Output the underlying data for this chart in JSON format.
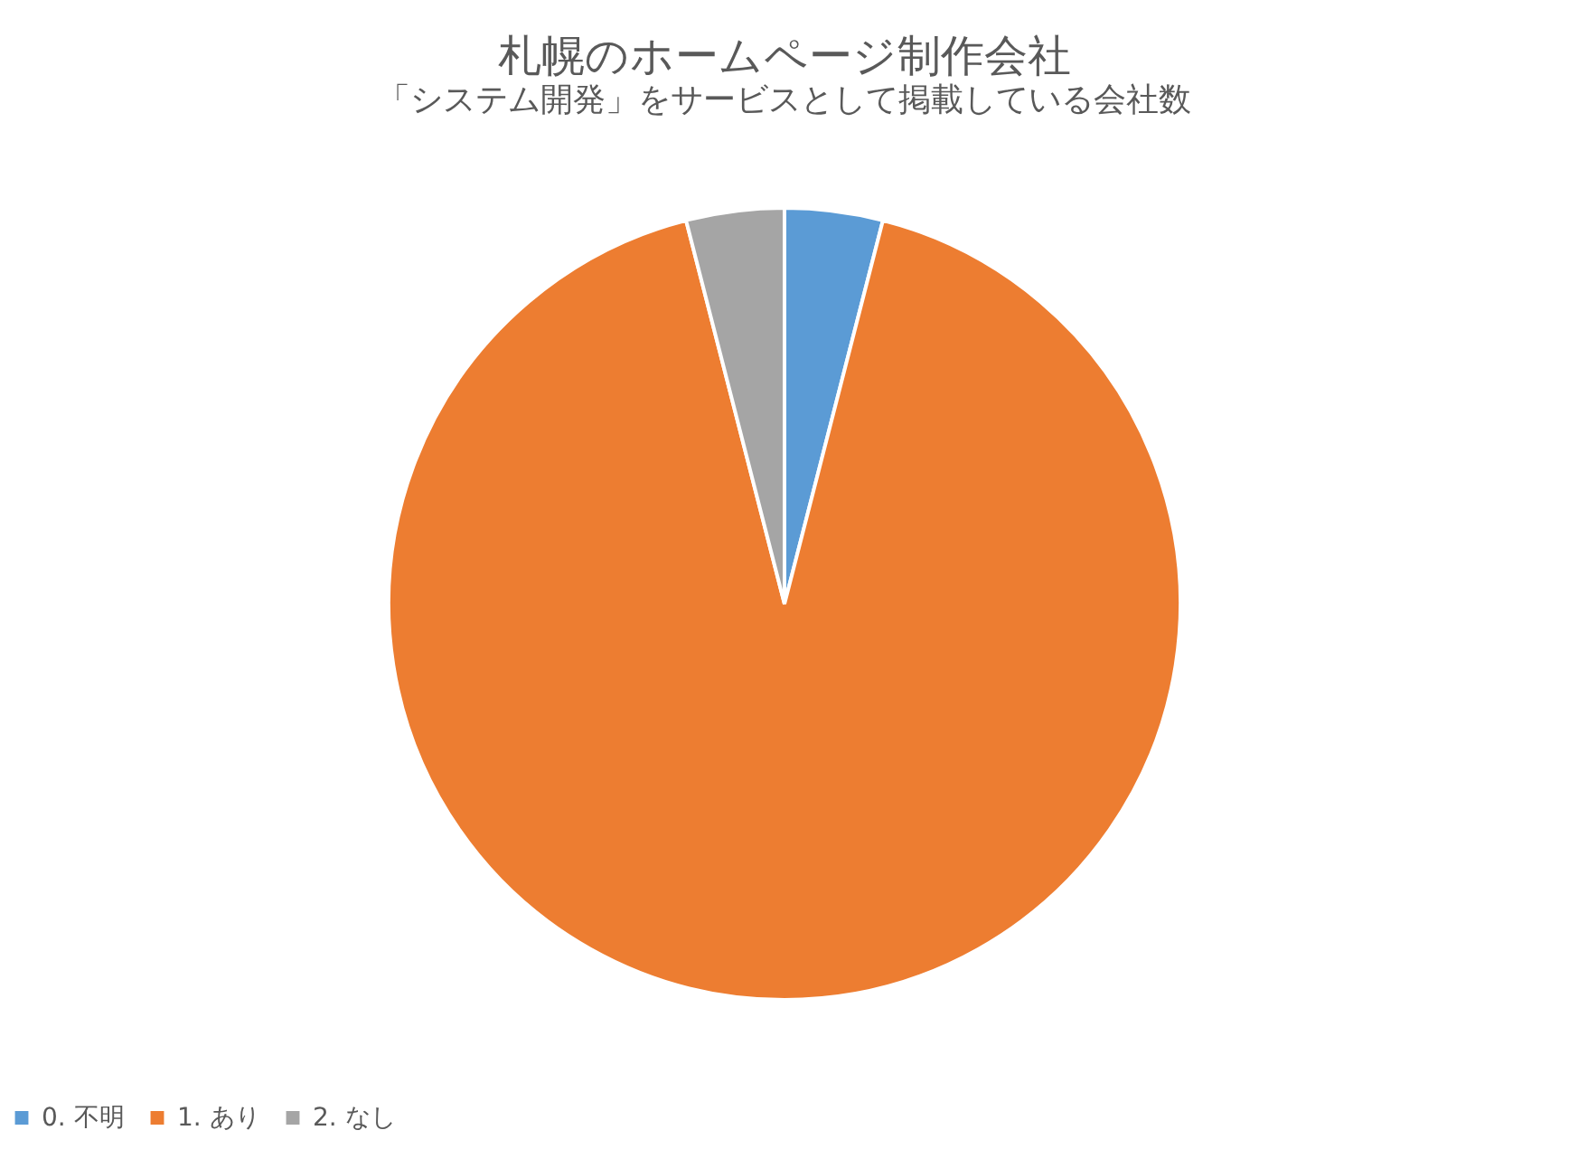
{
  "chart_data": {
    "type": "pie",
    "title": "札幌のホームページ制作会社",
    "subtitle": "「システム開発」をサービスとして掲載している会社数",
    "categories": [
      "0. 不明",
      "1. あり",
      "2. なし"
    ],
    "values": [
      4,
      92,
      4
    ],
    "colors": [
      "#5b9bd5",
      "#ed7d31",
      "#a5a5a5"
    ],
    "legend": "bottom"
  }
}
